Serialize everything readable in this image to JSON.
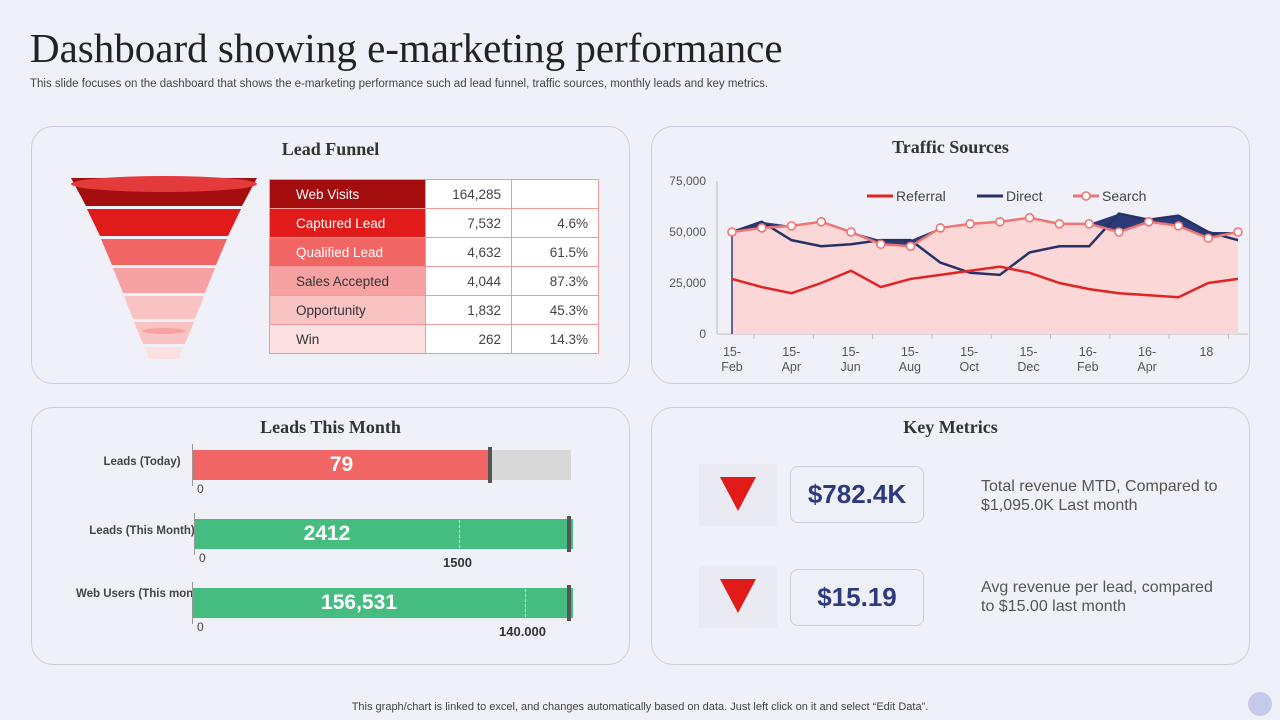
{
  "title": "Dashboard showing e-marketing performance",
  "subtitle": "This slide focuses on the dashboard that shows the e-marketing performance such ad lead funnel, traffic sources, monthly leads and key metrics.",
  "footer": "This graph/chart is linked to excel,  and changes automatically based on data. Just left click on it and select “Edit Data”.",
  "colors": {
    "accent_red": "#e11a1a",
    "green": "#46bd80",
    "navy": "#2f3a7c"
  },
  "chart_data": [
    {
      "type": "table",
      "title": "Lead Funnel",
      "rows": [
        {
          "stage": "Web Visits",
          "value": "164,285",
          "pct": "",
          "color": "#a30d0d"
        },
        {
          "stage": "Captured Lead",
          "value": "7,532",
          "pct": "4.6%",
          "color": "#e11a1a"
        },
        {
          "stage": "Qualified Lead",
          "value": "4,632",
          "pct": "61.5%",
          "color": "#f16565"
        },
        {
          "stage": "Sales Accepted",
          "value": "4,044",
          "pct": "87.3%",
          "color": "#f7a2a2"
        },
        {
          "stage": "Opportunity",
          "value": "1,832",
          "pct": "45.3%",
          "color": "#fac3c3"
        },
        {
          "stage": "Win",
          "value": "262",
          "pct": "14.3%",
          "color": "#fde1e1"
        }
      ]
    },
    {
      "type": "line",
      "title": "Traffic Sources",
      "x_labels": [
        [
          "15-",
          "Feb"
        ],
        [
          "15-",
          "Apr"
        ],
        [
          "15-",
          "Jun"
        ],
        [
          "15-",
          "Aug"
        ],
        [
          "15-",
          "Oct"
        ],
        [
          "15-",
          "Dec"
        ],
        [
          "16-",
          "Feb"
        ],
        [
          "16-",
          "Apr"
        ],
        [
          "18",
          ""
        ]
      ],
      "yticks": [
        "75,000",
        "50,000",
        "25,000",
        "0"
      ],
      "ylim": [
        0,
        75000
      ],
      "legend_position": "top",
      "series": [
        {
          "name": "Referral",
          "color": "#e02424",
          "values": [
            27000,
            23000,
            20000,
            25000,
            31000,
            23000,
            27000,
            29000,
            31000,
            33000,
            30000,
            25000,
            22000,
            20000,
            19000,
            18000,
            25000,
            27000
          ]
        },
        {
          "name": "Direct",
          "color": "#263266",
          "values": [
            50000,
            55000,
            46000,
            43000,
            44000,
            46000,
            46000,
            35000,
            30000,
            29000,
            40000,
            43000,
            43000,
            59000,
            56000,
            58000,
            50000,
            46000
          ]
        },
        {
          "name": "Search",
          "color": "#f07474",
          "values": [
            50000,
            52000,
            53000,
            55000,
            50000,
            44000,
            43000,
            52000,
            54000,
            55000,
            57000,
            54000,
            54000,
            50000,
            55000,
            53000,
            47000,
            50000
          ]
        }
      ]
    },
    {
      "type": "bar",
      "title": "Leads This Month",
      "bars": [
        {
          "label": "Leads (Today)",
          "value": 79,
          "value_label": "79",
          "zero": "0",
          "target_label": "",
          "color": "#f16565"
        },
        {
          "label": "Leads (This Month)",
          "value": 2412,
          "value_label": "2412",
          "zero": "0",
          "target_label": "1500",
          "color": "#46bd80"
        },
        {
          "label": "Web Users (This month)",
          "value": 156531,
          "value_label": "156,531",
          "zero": "0",
          "target_label": "140.000",
          "color": "#46bd80"
        }
      ]
    }
  ],
  "key_metrics": {
    "title": "Key Metrics",
    "items": [
      {
        "value": "$782.4K",
        "description": "Total revenue MTD, Compared to $1,095.0K Last month",
        "icon": "down-arrow-icon"
      },
      {
        "value": "$15.19",
        "description": "Avg revenue  per lead, compared to $15.00 last month",
        "icon": "down-arrow-icon"
      }
    ]
  }
}
